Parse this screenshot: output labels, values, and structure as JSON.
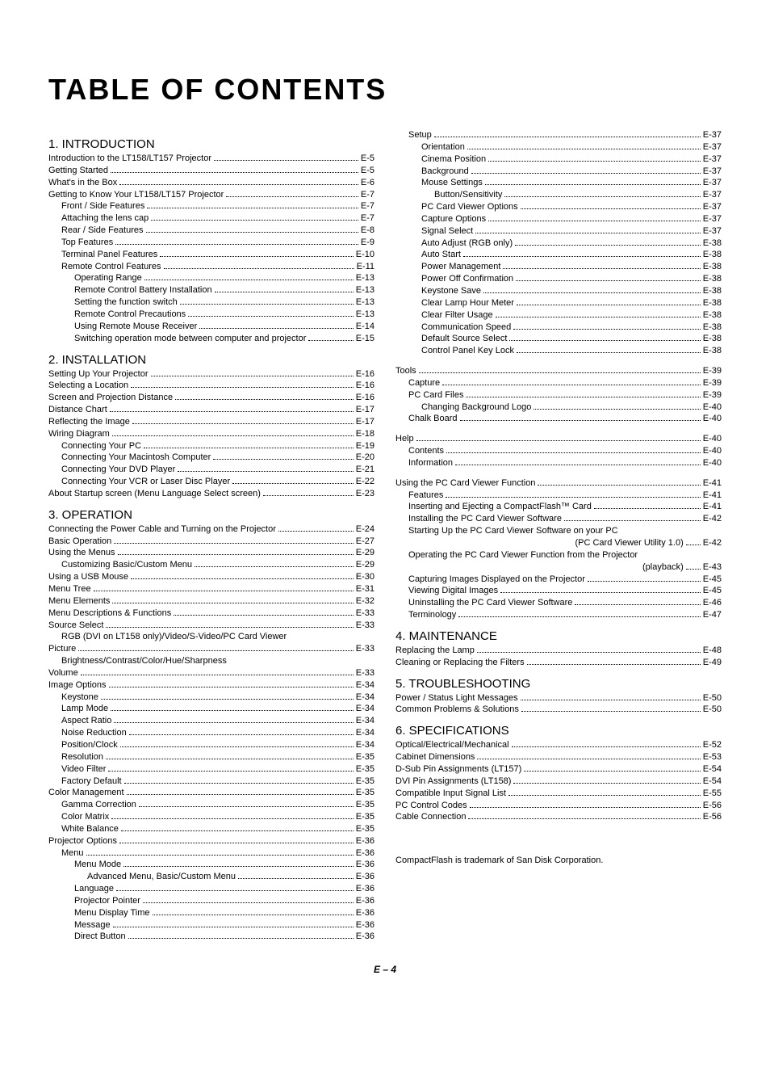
{
  "title": "TABLE OF CONTENTS",
  "page_number": "E – 4",
  "footnote": "CompactFlash is trademark of San Disk Corporation.",
  "colors": {
    "text": "#000000",
    "background": "#ffffff"
  },
  "typography": {
    "title_fontsize": 36,
    "heading_fontsize": 15,
    "body_fontsize": 11
  },
  "left": [
    {
      "type": "heading",
      "text": "1. INTRODUCTION"
    },
    {
      "indent": 0,
      "label": "Introduction to the LT158/LT157 Projector",
      "page": "E-5"
    },
    {
      "indent": 0,
      "label": "Getting Started",
      "page": "E-5"
    },
    {
      "indent": 0,
      "label": "What's in the Box",
      "page": "E-6"
    },
    {
      "indent": 0,
      "label": "Getting to Know Your LT158/LT157 Projector",
      "page": "E-7"
    },
    {
      "indent": 1,
      "label": "Front / Side Features",
      "page": "E-7"
    },
    {
      "indent": 1,
      "label": "Attaching the lens cap",
      "page": "E-7"
    },
    {
      "indent": 1,
      "label": "Rear / Side Features",
      "page": "E-8"
    },
    {
      "indent": 1,
      "label": "Top Features",
      "page": "E-9"
    },
    {
      "indent": 1,
      "label": "Terminal Panel Features",
      "page": "E-10"
    },
    {
      "indent": 1,
      "label": "Remote Control Features",
      "page": "E-11"
    },
    {
      "indent": 2,
      "label": "Operating Range",
      "page": "E-13"
    },
    {
      "indent": 2,
      "label": "Remote Control Battery Installation",
      "page": "E-13"
    },
    {
      "indent": 2,
      "label": "Setting the function switch",
      "page": "E-13"
    },
    {
      "indent": 2,
      "label": "Remote Control Precautions",
      "page": "E-13"
    },
    {
      "indent": 2,
      "label": "Using Remote Mouse Receiver",
      "page": "E-14"
    },
    {
      "indent": 2,
      "label": "Switching operation mode between computer and projector",
      "page": "E-15"
    },
    {
      "type": "heading",
      "text": "2. INSTALLATION"
    },
    {
      "indent": 0,
      "label": "Setting Up Your Projector",
      "page": "E-16"
    },
    {
      "indent": 0,
      "label": "Selecting a Location",
      "page": "E-16"
    },
    {
      "indent": 0,
      "label": "Screen and Projection Distance",
      "page": "E-16"
    },
    {
      "indent": 0,
      "label": "Distance Chart",
      "page": "E-17"
    },
    {
      "indent": 0,
      "label": "Reflecting the Image",
      "page": "E-17"
    },
    {
      "indent": 0,
      "label": "Wiring Diagram",
      "page": "E-18"
    },
    {
      "indent": 1,
      "label": "Connecting Your PC",
      "page": "E-19"
    },
    {
      "indent": 1,
      "label": "Connecting Your Macintosh Computer",
      "page": "E-20"
    },
    {
      "indent": 1,
      "label": "Connecting Your DVD Player",
      "page": "E-21"
    },
    {
      "indent": 1,
      "label": "Connecting Your VCR or Laser Disc Player",
      "page": "E-22"
    },
    {
      "indent": 0,
      "label": "About Startup screen (Menu Language Select screen)",
      "page": "E-23"
    },
    {
      "type": "heading",
      "text": "3. OPERATION"
    },
    {
      "indent": 0,
      "label": "Connecting the Power Cable and Turning on the Projector",
      "page": "E-24"
    },
    {
      "indent": 0,
      "label": "Basic Operation",
      "page": "E-27"
    },
    {
      "indent": 0,
      "label": "Using the Menus",
      "page": "E-29"
    },
    {
      "indent": 1,
      "label": "Customizing Basic/Custom Menu",
      "page": "E-29"
    },
    {
      "indent": 0,
      "label": "Using a USB Mouse",
      "page": "E-30"
    },
    {
      "indent": 0,
      "label": "Menu Tree",
      "page": "E-31"
    },
    {
      "indent": 0,
      "label": "Menu Elements",
      "page": "E-32"
    },
    {
      "indent": 0,
      "label": "Menu Descriptions & Functions",
      "page": "E-33"
    },
    {
      "indent": 0,
      "label": "Source Select",
      "page": "E-33"
    },
    {
      "indent": 1,
      "type": "textonly",
      "label": "RGB (DVI on LT158 only)/Video/S-Video/PC Card Viewer"
    },
    {
      "indent": 0,
      "label": "Picture",
      "page": "E-33"
    },
    {
      "indent": 1,
      "type": "textonly",
      "label": "Brightness/Contrast/Color/Hue/Sharpness"
    },
    {
      "indent": 0,
      "label": "Volume",
      "page": "E-33"
    },
    {
      "indent": 0,
      "label": "Image Options",
      "page": "E-34"
    },
    {
      "indent": 1,
      "label": "Keystone",
      "page": "E-34"
    },
    {
      "indent": 1,
      "label": "Lamp Mode",
      "page": "E-34"
    },
    {
      "indent": 1,
      "label": "Aspect Ratio",
      "page": "E-34"
    },
    {
      "indent": 1,
      "label": "Noise Reduction",
      "page": "E-34"
    },
    {
      "indent": 1,
      "label": "Position/Clock",
      "page": "E-34"
    },
    {
      "indent": 1,
      "label": "Resolution",
      "page": "E-35"
    },
    {
      "indent": 1,
      "label": "Video Filter",
      "page": "E-35"
    },
    {
      "indent": 1,
      "label": "Factory Default",
      "page": "E-35"
    },
    {
      "indent": 0,
      "label": "Color Management",
      "page": "E-35"
    },
    {
      "indent": 1,
      "label": "Gamma Correction",
      "page": "E-35"
    },
    {
      "indent": 1,
      "label": "Color Matrix",
      "page": "E-35"
    },
    {
      "indent": 1,
      "label": "White Balance",
      "page": "E-35"
    },
    {
      "indent": 0,
      "label": "Projector Options",
      "page": "E-36"
    },
    {
      "indent": 1,
      "label": "Menu",
      "page": "E-36"
    },
    {
      "indent": 2,
      "label": "Menu Mode",
      "page": "E-36"
    },
    {
      "indent": 3,
      "label": "Advanced Menu, Basic/Custom Menu",
      "page": "E-36"
    },
    {
      "indent": 2,
      "label": "Language",
      "page": "E-36"
    },
    {
      "indent": 2,
      "label": "Projector Pointer",
      "page": "E-36"
    },
    {
      "indent": 2,
      "label": "Menu Display Time",
      "page": "E-36"
    },
    {
      "indent": 2,
      "label": "Message",
      "page": "E-36"
    },
    {
      "indent": 2,
      "label": "Direct Button",
      "page": "E-36"
    }
  ],
  "right": [
    {
      "indent": 1,
      "label": "Setup",
      "page": "E-37"
    },
    {
      "indent": 2,
      "label": "Orientation",
      "page": "E-37"
    },
    {
      "indent": 2,
      "label": "Cinema Position",
      "page": "E-37"
    },
    {
      "indent": 2,
      "label": "Background",
      "page": "E-37"
    },
    {
      "indent": 2,
      "label": "Mouse Settings",
      "page": "E-37"
    },
    {
      "indent": 3,
      "label": "Button/Sensitivity",
      "page": "E-37"
    },
    {
      "indent": 2,
      "label": "PC Card Viewer Options",
      "page": "E-37"
    },
    {
      "indent": 2,
      "label": "Capture Options",
      "page": "E-37"
    },
    {
      "indent": 2,
      "label": "Signal Select",
      "page": "E-37"
    },
    {
      "indent": 2,
      "label": "Auto Adjust (RGB only)",
      "page": "E-38"
    },
    {
      "indent": 2,
      "label": "Auto Start",
      "page": "E-38"
    },
    {
      "indent": 2,
      "label": "Power Management",
      "page": "E-38"
    },
    {
      "indent": 2,
      "label": "Power Off Confirmation",
      "page": "E-38"
    },
    {
      "indent": 2,
      "label": "Keystone Save",
      "page": "E-38"
    },
    {
      "indent": 2,
      "label": "Clear Lamp Hour Meter",
      "page": "E-38"
    },
    {
      "indent": 2,
      "label": "Clear Filter Usage",
      "page": "E-38"
    },
    {
      "indent": 2,
      "label": "Communication Speed",
      "page": "E-38"
    },
    {
      "indent": 2,
      "label": "Default Source Select",
      "page": "E-38"
    },
    {
      "indent": 2,
      "label": "Control Panel Key Lock",
      "page": "E-38"
    },
    {
      "type": "gap"
    },
    {
      "indent": 0,
      "label": "Tools",
      "page": "E-39"
    },
    {
      "indent": 1,
      "label": "Capture",
      "page": "E-39"
    },
    {
      "indent": 1,
      "label": "PC Card Files",
      "page": "E-39"
    },
    {
      "indent": 2,
      "label": "Changing Background Logo",
      "page": "E-40"
    },
    {
      "indent": 1,
      "label": "Chalk Board",
      "page": "E-40"
    },
    {
      "type": "gap"
    },
    {
      "indent": 0,
      "label": "Help",
      "page": "E-40"
    },
    {
      "indent": 1,
      "label": "Contents",
      "page": "E-40"
    },
    {
      "indent": 1,
      "label": "Information",
      "page": "E-40"
    },
    {
      "type": "gap"
    },
    {
      "indent": 0,
      "label": "Using the PC Card Viewer Function",
      "page": "E-41"
    },
    {
      "indent": 1,
      "label": "Features",
      "page": "E-41"
    },
    {
      "indent": 1,
      "label": "Inserting and Ejecting a CompactFlash™ Card",
      "page": "E-41"
    },
    {
      "indent": 1,
      "label": "Installing the PC Card Viewer Software",
      "page": "E-42"
    },
    {
      "indent": 1,
      "type": "textonly",
      "label": "Starting Up the PC Card Viewer Software on your PC"
    },
    {
      "indent": 1,
      "type": "rightlabel",
      "label": "(PC Card Viewer Utility 1.0)",
      "page": "E-42"
    },
    {
      "indent": 1,
      "type": "textonly",
      "label": "Operating the PC Card Viewer Function from the Projector"
    },
    {
      "indent": 1,
      "type": "rightlabel",
      "label": "(playback)",
      "page": "E-43"
    },
    {
      "indent": 1,
      "label": "Capturing Images Displayed on the Projector",
      "page": "E-45"
    },
    {
      "indent": 1,
      "label": "Viewing Digital Images",
      "page": "E-45"
    },
    {
      "indent": 1,
      "label": "Uninstalling the PC Card Viewer Software",
      "page": "E-46"
    },
    {
      "indent": 1,
      "label": "Terminology",
      "page": "E-47"
    },
    {
      "type": "heading",
      "text": "4. MAINTENANCE"
    },
    {
      "indent": 0,
      "label": "Replacing the Lamp",
      "page": "E-48"
    },
    {
      "indent": 0,
      "label": "Cleaning or Replacing the Filters",
      "page": "E-49"
    },
    {
      "type": "heading",
      "text": "5. TROUBLESHOOTING"
    },
    {
      "indent": 0,
      "label": "Power / Status Light Messages",
      "page": "E-50"
    },
    {
      "indent": 0,
      "label": "Common Problems & Solutions",
      "page": "E-50"
    },
    {
      "type": "heading",
      "text": "6. SPECIFICATIONS"
    },
    {
      "indent": 0,
      "label": "Optical/Electrical/Mechanical",
      "page": "E-52"
    },
    {
      "indent": 0,
      "label": "Cabinet Dimensions",
      "page": "E-53"
    },
    {
      "indent": 0,
      "label": "D-Sub Pin Assignments (LT157)",
      "page": "E-54"
    },
    {
      "indent": 0,
      "label": "DVI Pin Assignments (LT158)",
      "page": "E-54"
    },
    {
      "indent": 0,
      "label": "Compatible Input Signal List",
      "page": "E-55"
    },
    {
      "indent": 0,
      "label": "PC Control Codes",
      "page": "E-56"
    },
    {
      "indent": 0,
      "label": "Cable Connection",
      "page": "E-56"
    }
  ]
}
